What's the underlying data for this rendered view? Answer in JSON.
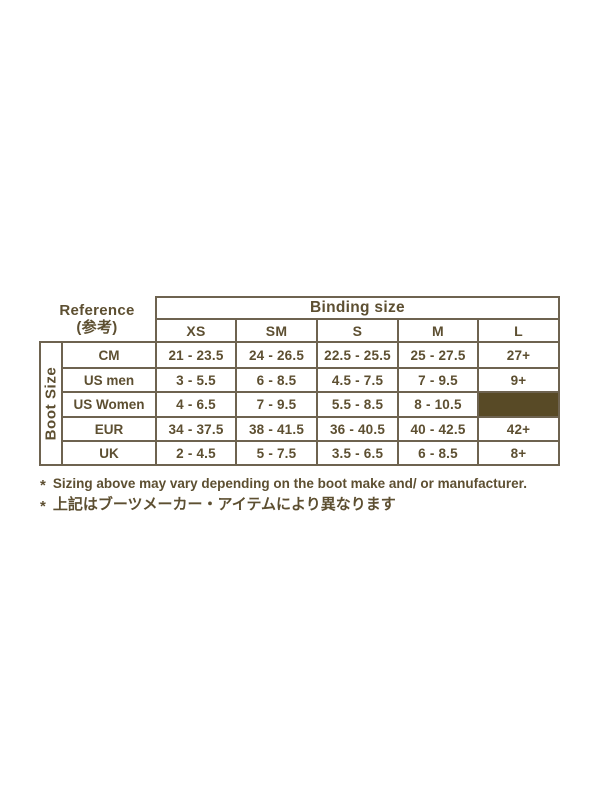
{
  "colors": {
    "text": "#5d4f31",
    "border": "#6e6350",
    "highlight_fill": "#584a26",
    "background": "#ffffff"
  },
  "chart_data": {
    "type": "table",
    "title": "Binding size",
    "corner_header": {
      "line1": "Reference",
      "line2": "(参考)"
    },
    "row_group_label": "Boot Size",
    "columns": [
      "XS",
      "SM",
      "S",
      "M",
      "L"
    ],
    "rows": [
      {
        "label": "CM",
        "values": [
          "21 - 23.5",
          "24 - 26.5",
          "22.5 - 25.5",
          "25 - 27.5",
          "27+"
        ]
      },
      {
        "label": "US men",
        "values": [
          "3 - 5.5",
          "6 - 8.5",
          "4.5 - 7.5",
          "7 - 9.5",
          "9+"
        ]
      },
      {
        "label": "US Women",
        "values": [
          "4 - 6.5",
          "7 - 9.5",
          "5.5 - 8.5",
          "8 - 10.5",
          ""
        ]
      },
      {
        "label": "EUR",
        "values": [
          "34 - 37.5",
          "38 - 41.5",
          "36 - 40.5",
          "40 - 42.5",
          "42+"
        ]
      },
      {
        "label": "UK",
        "values": [
          "2 - 4.5",
          "5 - 7.5",
          "3.5 - 6.5",
          "6 - 8.5",
          "8+"
        ]
      }
    ],
    "highlighted_cell": {
      "row_label": "US Women",
      "column": "L",
      "style": "solid-brown-fill-no-value"
    }
  },
  "notes": [
    {
      "marker": "*",
      "text": "Sizing above may vary depending on the boot make and/ or manufacturer."
    },
    {
      "marker": "*",
      "text": "上記はブーツメーカー・アイテムにより異なります"
    }
  ]
}
